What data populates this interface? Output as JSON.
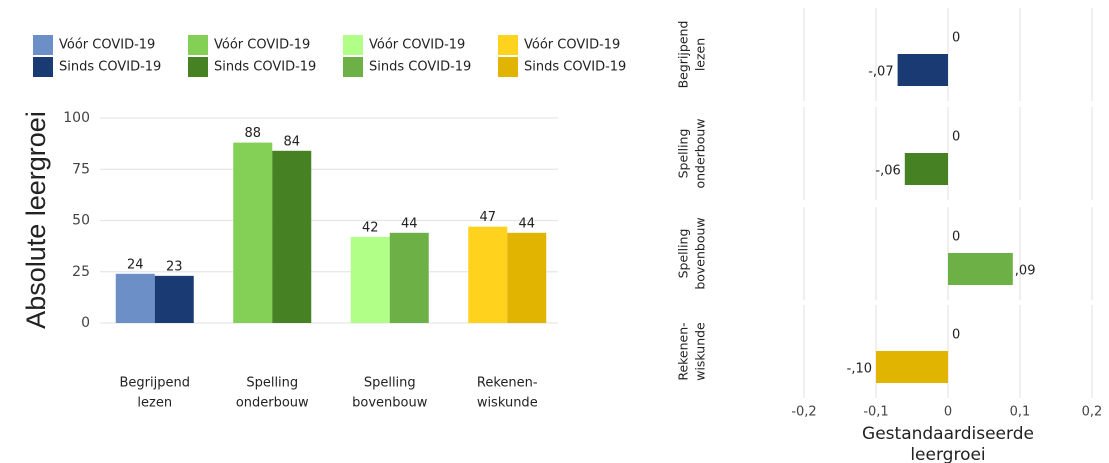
{
  "chart_data": [
    {
      "type": "bar",
      "ylabel": "Absolute leergroei",
      "categories": [
        [
          "Begrijpend",
          "lezen"
        ],
        [
          "Spelling",
          "onderbouw"
        ],
        [
          "Spelling",
          "bovenbouw"
        ],
        [
          "Rekenen-",
          "wiskunde"
        ]
      ],
      "series": [
        {
          "name": "Vóór COVID-19",
          "colors": [
            "#6d8fc7",
            "#84cf55",
            "#b1ff86",
            "#ffd21e"
          ],
          "values": [
            24,
            88,
            42,
            47
          ]
        },
        {
          "name": "Sinds COVID-19",
          "colors": [
            "#1a3a73",
            "#468223",
            "#6db046",
            "#e0b400"
          ],
          "values": [
            23,
            84,
            44,
            44
          ]
        }
      ],
      "ylim": [
        0,
        105
      ],
      "yticks": [
        0,
        25,
        50,
        75,
        100
      ],
      "grid": true,
      "legend": "top"
    },
    {
      "type": "hbar",
      "xlabel": [
        "Gestandaardiseerde",
        "leergroei"
      ],
      "categories": [
        [
          "Begrijpend",
          "lezen"
        ],
        [
          "Spelling",
          "onderbouw"
        ],
        [
          "Spelling",
          "bovenbouw"
        ],
        [
          "Rekenen-",
          "wiskunde"
        ]
      ],
      "series": [
        {
          "colors": [
            "#6d8fc7",
            "#84cf55",
            "#b1ff86",
            "#ffd21e"
          ],
          "values": [
            0,
            0,
            0,
            0
          ]
        },
        {
          "colors": [
            "#1a3a73",
            "#468223",
            "#6db046",
            "#e0b400"
          ],
          "values": [
            -0.07,
            -0.06,
            0.09,
            -0.1
          ],
          "value_labels": [
            "-,07",
            "-,06",
            ",09",
            "-,10"
          ]
        }
      ],
      "xlim": [
        -0.22,
        0.22
      ],
      "xticks": [
        {
          "value": -0.2,
          "label": "-0,2"
        },
        {
          "value": -0.1,
          "label": "-0,1"
        },
        0,
        {
          "value": 0.1,
          "label": "0,1"
        },
        {
          "value": 0.2,
          "label": "0,2"
        }
      ],
      "grid": true
    }
  ]
}
